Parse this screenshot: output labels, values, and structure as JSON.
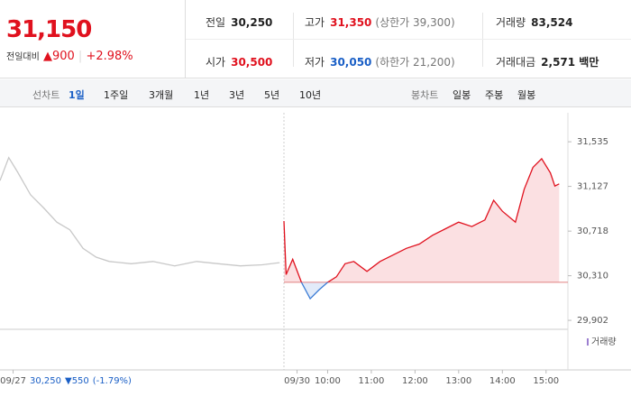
{
  "quote": {
    "price": "31,150",
    "change_label": "전일대비",
    "change": "▲900",
    "change_pct": "+2.98%"
  },
  "summary": [
    {
      "label": "전일",
      "value": "30,250",
      "color": "#222222"
    },
    {
      "label": "고가",
      "value": "31,350",
      "note": "(상한가 39,300)",
      "color": "#e0111e"
    },
    {
      "label": "거래량",
      "value": "83,524",
      "color": "#222222"
    },
    {
      "label": "시가",
      "value": "30,500",
      "color": "#e0111e"
    },
    {
      "label": "저가",
      "value": "30,050",
      "note": "(하한가 21,200)",
      "color": "#1a5fc6"
    },
    {
      "label": "거래대금",
      "value": "2,571 백만",
      "color": "#222222"
    }
  ],
  "toolbar": {
    "line_label": "선차트",
    "line_tabs": [
      "1일",
      "1주일",
      "3개월",
      "1년",
      "3년",
      "5년",
      "10년"
    ],
    "selected": 0,
    "candle_label": "봉차트",
    "candle_tabs": [
      "일봉",
      "주봉",
      "월봉"
    ]
  },
  "chart_data": {
    "type": "line",
    "ylim": [
      29820,
      31800
    ],
    "yticks": [
      {
        "value": 31535,
        "label": "31,535"
      },
      {
        "value": 31127,
        "label": "31,127"
      },
      {
        "value": 30718,
        "label": "30,718"
      },
      {
        "value": 30310,
        "label": "30,310"
      },
      {
        "value": 29902,
        "label": "29,902"
      }
    ],
    "xlim": [
      2.5,
      15.5
    ],
    "xticks": [
      {
        "value": 2.8,
        "label": "09/27"
      },
      {
        "value": 9.3,
        "label": "09/30"
      },
      {
        "value": 10,
        "label": "10:00"
      },
      {
        "value": 11,
        "label": "11:00"
      },
      {
        "value": 12,
        "label": "12:00"
      },
      {
        "value": 13,
        "label": "13:00"
      },
      {
        "value": 14,
        "label": "14:00"
      },
      {
        "value": 15,
        "label": "15:00"
      }
    ],
    "previous_note": {
      "close": "30,250",
      "change": "▼550",
      "change_pct": "(-1.79%)"
    },
    "volume_legend": "거래량",
    "series": [
      {
        "color": "#c8c8c8",
        "x": [
          2.5,
          2.7,
          2.9,
          3.2,
          3.5,
          3.8,
          4.1,
          4.4,
          4.7,
          5.0,
          5.5,
          6.0,
          6.5,
          7.0,
          7.5,
          8.0,
          8.5,
          8.9
        ],
        "values": [
          31180,
          31390,
          31260,
          31050,
          30930,
          30800,
          30730,
          30560,
          30480,
          30440,
          30420,
          30440,
          30400,
          30440,
          30420,
          30400,
          30410,
          30430
        ]
      },
      {
        "color": "#e0111e",
        "below_color": "#3a7bd5",
        "x": [
          9.0,
          9.05,
          9.2,
          9.4,
          9.6,
          9.8,
          10.0,
          10.2,
          10.4,
          10.6,
          10.9,
          11.2,
          11.5,
          11.8,
          12.1,
          12.4,
          12.7,
          13.0,
          13.3,
          13.6,
          13.8,
          14.0,
          14.3,
          14.5,
          14.7,
          14.9,
          15.1,
          15.2,
          15.3
        ],
        "values": [
          30810,
          30320,
          30460,
          30250,
          30100,
          30180,
          30250,
          30300,
          30420,
          30440,
          30350,
          30440,
          30500,
          30560,
          30600,
          30680,
          30740,
          30800,
          30760,
          30820,
          31000,
          30900,
          30800,
          31100,
          31300,
          31380,
          31250,
          31130,
          31150
        ]
      }
    ]
  }
}
